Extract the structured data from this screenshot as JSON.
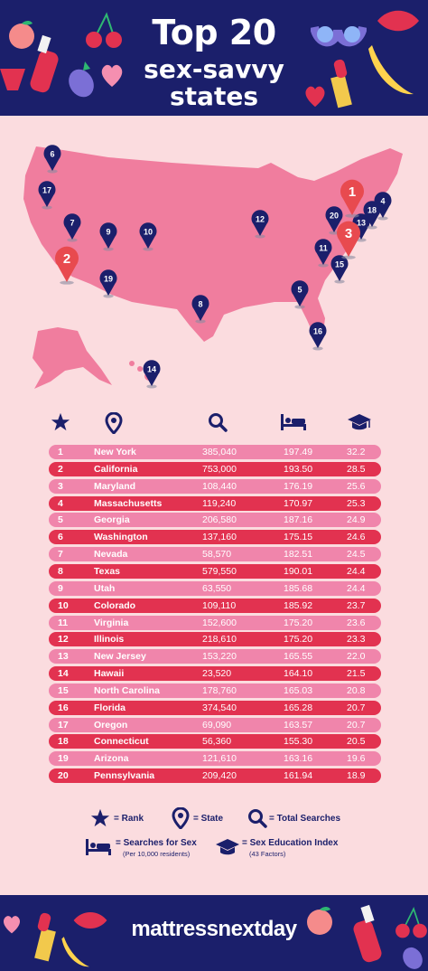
{
  "header": {
    "title_line1": "Top 20",
    "title_line2a": "sex-savvy",
    "title_line2b": "states"
  },
  "colors": {
    "navy": "#1b1f6b",
    "background": "#fbdcdf",
    "row_light": "#f085ab",
    "row_dark": "#e23250",
    "map_fill": "#f07d9e",
    "pin_top": "#e84a4f"
  },
  "table_icons": [
    "star-icon",
    "location-pin-icon",
    "magnifier-icon",
    "bed-icon",
    "graduation-cap-icon"
  ],
  "chart_data": {
    "type": "table",
    "columns": [
      "Rank",
      "State",
      "Total Searches",
      "Searches for Sex",
      "Sex Education Index"
    ],
    "rows": [
      {
        "rank": "1",
        "state": "New York",
        "total_searches": "385,040",
        "searches_for_sex": "197.49",
        "sex_education_index": "32.2"
      },
      {
        "rank": "2",
        "state": "California",
        "total_searches": "753,000",
        "searches_for_sex": "193.50",
        "sex_education_index": "28.5"
      },
      {
        "rank": "3",
        "state": "Maryland",
        "total_searches": "108,440",
        "searches_for_sex": "176.19",
        "sex_education_index": "25.6"
      },
      {
        "rank": "4",
        "state": "Massachusetts",
        "total_searches": "119,240",
        "searches_for_sex": "170.97",
        "sex_education_index": "25.3"
      },
      {
        "rank": "5",
        "state": "Georgia",
        "total_searches": "206,580",
        "searches_for_sex": "187.16",
        "sex_education_index": "24.9"
      },
      {
        "rank": "6",
        "state": "Washington",
        "total_searches": "137,160",
        "searches_for_sex": "175.15",
        "sex_education_index": "24.6"
      },
      {
        "rank": "7",
        "state": "Nevada",
        "total_searches": "58,570",
        "searches_for_sex": "182.51",
        "sex_education_index": "24.5"
      },
      {
        "rank": "8",
        "state": "Texas",
        "total_searches": "579,550",
        "searches_for_sex": "190.01",
        "sex_education_index": "24.4"
      },
      {
        "rank": "9",
        "state": "Utah",
        "total_searches": "63,550",
        "searches_for_sex": "185.68",
        "sex_education_index": "24.4"
      },
      {
        "rank": "10",
        "state": "Colorado",
        "total_searches": "109,110",
        "searches_for_sex": "185.92",
        "sex_education_index": "23.7"
      },
      {
        "rank": "11",
        "state": "Virginia",
        "total_searches": "152,600",
        "searches_for_sex": "175.20",
        "sex_education_index": "23.6"
      },
      {
        "rank": "12",
        "state": "Illinois",
        "total_searches": "218,610",
        "searches_for_sex": "175.20",
        "sex_education_index": "23.3"
      },
      {
        "rank": "13",
        "state": "New Jersey",
        "total_searches": "153,220",
        "searches_for_sex": "165.55",
        "sex_education_index": "22.0"
      },
      {
        "rank": "14",
        "state": "Hawaii",
        "total_searches": "23,520",
        "searches_for_sex": "164.10",
        "sex_education_index": "21.5"
      },
      {
        "rank": "15",
        "state": "North Carolina",
        "total_searches": "178,760",
        "searches_for_sex": "165.03",
        "sex_education_index": "20.8"
      },
      {
        "rank": "16",
        "state": "Florida",
        "total_searches": "374,540",
        "searches_for_sex": "165.28",
        "sex_education_index": "20.7"
      },
      {
        "rank": "17",
        "state": "Oregon",
        "total_searches": "69,090",
        "searches_for_sex": "163.57",
        "sex_education_index": "20.7"
      },
      {
        "rank": "18",
        "state": "Connecticut",
        "total_searches": "56,360",
        "searches_for_sex": "155.30",
        "sex_education_index": "20.5"
      },
      {
        "rank": "19",
        "state": "Arizona",
        "total_searches": "121,610",
        "searches_for_sex": "163.16",
        "sex_education_index": "19.6"
      },
      {
        "rank": "20",
        "state": "Pennsylvania",
        "total_searches": "209,420",
        "searches_for_sex": "161.94",
        "sex_education_index": "18.9"
      }
    ]
  },
  "map": {
    "pins": [
      {
        "label": "1",
        "state": "New York"
      },
      {
        "label": "2",
        "state": "California"
      },
      {
        "label": "3",
        "state": "Maryland"
      },
      {
        "label": "4",
        "state": "Massachusetts"
      },
      {
        "label": "5",
        "state": "Georgia"
      },
      {
        "label": "6",
        "state": "Washington"
      },
      {
        "label": "7",
        "state": "Nevada"
      },
      {
        "label": "8",
        "state": "Texas"
      },
      {
        "label": "9",
        "state": "Utah"
      },
      {
        "label": "10",
        "state": "Colorado"
      },
      {
        "label": "11",
        "state": "Virginia"
      },
      {
        "label": "12",
        "state": "Illinois"
      },
      {
        "label": "13",
        "state": "New Jersey"
      },
      {
        "label": "14",
        "state": "Hawaii"
      },
      {
        "label": "15",
        "state": "North Carolina"
      },
      {
        "label": "16",
        "state": "Florida"
      },
      {
        "label": "17",
        "state": "Oregon"
      },
      {
        "label": "18",
        "state": "Connecticut"
      },
      {
        "label": "19",
        "state": "Arizona"
      },
      {
        "label": "20",
        "state": "Pennsylvania"
      }
    ]
  },
  "legend": {
    "rank": "= Rank",
    "state": "= State",
    "total_searches": "= Total Searches",
    "searches_for_sex": "= Searches for Sex",
    "searches_for_sex_sub": "(Per 10,000 residents)",
    "sex_education_index": "= Sex Education Index",
    "sex_education_index_sub": "(43 Factors)"
  },
  "footer": {
    "brand": "mattressnextday"
  }
}
